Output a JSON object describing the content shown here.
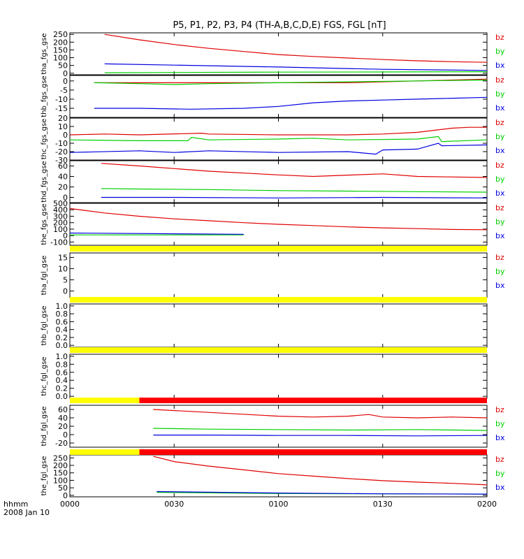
{
  "title": "P5, P1, P2, P3, P4 (TH-A,B,C,D,E) FGS, FGL [nT]",
  "time_axis": {
    "ticks": [
      "0000",
      "0030",
      "0100",
      "0130",
      "0200"
    ],
    "label_hhmm": "hhmm",
    "date": "2008 Jan 10",
    "range_minutes": [
      0,
      120
    ]
  },
  "colors": {
    "bz": "#e00000",
    "by": "#00d000",
    "bx": "#0000e0",
    "flag_yellow": "#ffff00",
    "flag_red": "#ff0000"
  },
  "chart_data": [
    {
      "type": "line",
      "ylabel": "tha_fgs_gse",
      "yticks": [
        "250",
        "200",
        "150",
        "100",
        "50",
        "0"
      ],
      "ylim": [
        -10,
        260
      ],
      "legend": [
        "bz",
        "by",
        "bx"
      ],
      "series": [
        {
          "name": "bz",
          "x": [
            10,
            20,
            30,
            40,
            50,
            60,
            70,
            80,
            90,
            100,
            110,
            120
          ],
          "values": [
            250,
            215,
            185,
            160,
            140,
            120,
            108,
            98,
            88,
            80,
            74,
            70
          ]
        },
        {
          "name": "by",
          "x": [
            10,
            30,
            60,
            90,
            120
          ],
          "values": [
            3,
            5,
            7,
            8,
            10
          ]
        },
        {
          "name": "bx",
          "x": [
            10,
            30,
            60,
            90,
            120
          ],
          "values": [
            60,
            52,
            40,
            25,
            18
          ]
        }
      ]
    },
    {
      "type": "line",
      "ylabel": "thb_fgs_gse",
      "yticks": [
        "0",
        "-5",
        "-10",
        "-15"
      ],
      "ylim": [
        -20,
        3
      ],
      "legend": [
        "bz",
        "by",
        "bx"
      ],
      "series": [
        {
          "name": "bz",
          "x": [
            7,
            20,
            40,
            60,
            80,
            100,
            120
          ],
          "values": [
            -1,
            -1,
            -1,
            -1,
            -1,
            0,
            1
          ]
        },
        {
          "name": "by",
          "x": [
            7,
            20,
            30,
            40,
            60,
            80,
            100,
            120
          ],
          "values": [
            -1,
            -1.5,
            -2,
            -1.5,
            -1,
            -0.5,
            0,
            0.5
          ]
        },
        {
          "name": "bx",
          "x": [
            7,
            20,
            35,
            50,
            60,
            70,
            80,
            90,
            100,
            110,
            120
          ],
          "values": [
            -15,
            -15,
            -15.5,
            -15,
            -14,
            -12,
            -11,
            -10.5,
            -10,
            -9.5,
            -9
          ]
        }
      ]
    },
    {
      "type": "line",
      "ylabel": "thc_fgs_gse",
      "yticks": [
        "20",
        "10",
        "0",
        "-10",
        "-20",
        "-30"
      ],
      "ylim": [
        -30,
        20
      ],
      "legend": [
        "bz",
        "by",
        "bx"
      ],
      "series": [
        {
          "name": "bz",
          "x": [
            0,
            10,
            20,
            38,
            40,
            60,
            80,
            90,
            100,
            110,
            115,
            120
          ],
          "values": [
            0,
            1,
            0,
            2,
            1,
            0,
            0,
            1,
            3,
            8,
            9,
            9
          ]
        },
        {
          "name": "by",
          "x": [
            0,
            20,
            34,
            35,
            40,
            60,
            70,
            80,
            100,
            106,
            107,
            120
          ],
          "values": [
            -6,
            -7,
            -7,
            -3,
            -6,
            -5,
            -4,
            -6,
            -5,
            -2,
            -8,
            -6
          ]
        },
        {
          "name": "bx",
          "x": [
            0,
            20,
            30,
            40,
            60,
            80,
            88,
            90,
            100,
            106,
            107,
            120
          ],
          "values": [
            -21,
            -19,
            -21,
            -19,
            -21,
            -20,
            -23,
            -18,
            -17,
            -10,
            -13,
            -12
          ]
        }
      ]
    },
    {
      "type": "line",
      "ylabel": "thd_fgs_gse",
      "yticks": [
        "60",
        "40",
        "20",
        "0"
      ],
      "ylim": [
        -10,
        70
      ],
      "legend": [
        "bz",
        "by",
        "bx"
      ],
      "series": [
        {
          "name": "bz",
          "x": [
            9,
            20,
            40,
            60,
            70,
            90,
            100,
            120
          ],
          "values": [
            65,
            60,
            50,
            43,
            40,
            45,
            40,
            38
          ]
        },
        {
          "name": "by",
          "x": [
            9,
            20,
            40,
            60,
            80,
            100,
            120
          ],
          "values": [
            17,
            16,
            15,
            13,
            12,
            11,
            10
          ]
        },
        {
          "name": "bx",
          "x": [
            9,
            30,
            60,
            90,
            120
          ],
          "values": [
            0,
            0,
            -1,
            0,
            -1
          ]
        }
      ]
    },
    {
      "type": "line",
      "ylabel": "the_fgs_gse",
      "yticks": [
        "500",
        "400",
        "300",
        "200",
        "100",
        "0",
        "-100"
      ],
      "ylim": [
        -150,
        500
      ],
      "legend": [
        "bz",
        "by",
        "bx"
      ],
      "series": [
        {
          "name": "bz",
          "x": [
            0,
            10,
            20,
            30,
            40,
            50,
            60,
            70,
            80,
            90,
            100,
            110,
            120
          ],
          "values": [
            420,
            350,
            300,
            260,
            230,
            200,
            175,
            155,
            135,
            120,
            108,
            95,
            90
          ]
        },
        {
          "name": "by",
          "x": [
            0,
            50
          ],
          "values": [
            10,
            10
          ]
        },
        {
          "name": "bx",
          "x": [
            0,
            50
          ],
          "values": [
            40,
            20
          ]
        }
      ]
    },
    {
      "type": "line",
      "ylabel": "tha_fgl_gse",
      "yticks": [
        "15",
        "10",
        "5",
        "0"
      ],
      "ylim": [
        -3,
        17
      ],
      "legend": [
        "bz",
        "by",
        "bx"
      ],
      "series": []
    },
    {
      "type": "line",
      "ylabel": "thb_fgl_gse",
      "yticks": [
        "1.0",
        "0.8",
        "0.6",
        "0.4",
        "0.2",
        "0.0"
      ],
      "ylim": [
        -0.05,
        1.05
      ],
      "legend": [],
      "series": []
    },
    {
      "type": "line",
      "ylabel": "thc_fgl_gse",
      "yticks": [
        "1.0",
        "0.8",
        "0.6",
        "0.4",
        "0.2",
        "0.0"
      ],
      "ylim": [
        -0.05,
        1.05
      ],
      "legend": [],
      "series": []
    },
    {
      "type": "line",
      "ylabel": "thd_fgl_gse",
      "yticks": [
        "60",
        "40",
        "20",
        "0",
        "-20"
      ],
      "ylim": [
        -30,
        70
      ],
      "legend": [
        "bz",
        "by",
        "bx"
      ],
      "series": [
        {
          "name": "bz",
          "x": [
            24,
            40,
            60,
            70,
            80,
            86,
            90,
            100,
            110,
            120
          ],
          "values": [
            60,
            53,
            44,
            42,
            44,
            48,
            42,
            40,
            42,
            40
          ]
        },
        {
          "name": "by",
          "x": [
            24,
            40,
            60,
            80,
            100,
            120
          ],
          "values": [
            15,
            13,
            12,
            11,
            12,
            10
          ]
        },
        {
          "name": "bx",
          "x": [
            24,
            40,
            60,
            80,
            100,
            120
          ],
          "values": [
            -1,
            -1,
            -2,
            -2,
            -3,
            -2
          ]
        }
      ]
    },
    {
      "type": "line",
      "ylabel": "the_fgl_gse",
      "yticks": [
        "250",
        "200",
        "150",
        "100",
        "50",
        "0"
      ],
      "ylim": [
        -10,
        270
      ],
      "legend": [
        "bz",
        "by",
        "bx"
      ],
      "series": [
        {
          "name": "bz",
          "x": [
            24,
            30,
            40,
            50,
            60,
            70,
            80,
            90,
            100,
            110,
            120
          ],
          "values": [
            260,
            225,
            195,
            170,
            145,
            128,
            112,
            98,
            88,
            80,
            70
          ]
        },
        {
          "name": "by",
          "x": [
            25,
            60,
            90,
            120
          ],
          "values": [
            20,
            12,
            10,
            8
          ]
        },
        {
          "name": "bx",
          "x": [
            25,
            60,
            90,
            120
          ],
          "values": [
            25,
            15,
            10,
            8
          ]
        }
      ]
    }
  ],
  "flag_bars": [
    {
      "segments": [
        {
          "from": 0,
          "to": 120,
          "color": "yellow"
        }
      ]
    },
    {
      "segments": [
        {
          "from": 0,
          "to": 120,
          "color": "yellow"
        }
      ]
    },
    {
      "segments": [
        {
          "from": 0,
          "to": 120,
          "color": "yellow"
        }
      ]
    },
    {
      "segments": [
        {
          "from": 0,
          "to": 20,
          "color": "yellow"
        },
        {
          "from": 20,
          "to": 120,
          "color": "red"
        }
      ]
    },
    {
      "segments": [
        {
          "from": 0,
          "to": 20,
          "color": "yellow"
        },
        {
          "from": 20,
          "to": 120,
          "color": "red"
        }
      ]
    }
  ]
}
